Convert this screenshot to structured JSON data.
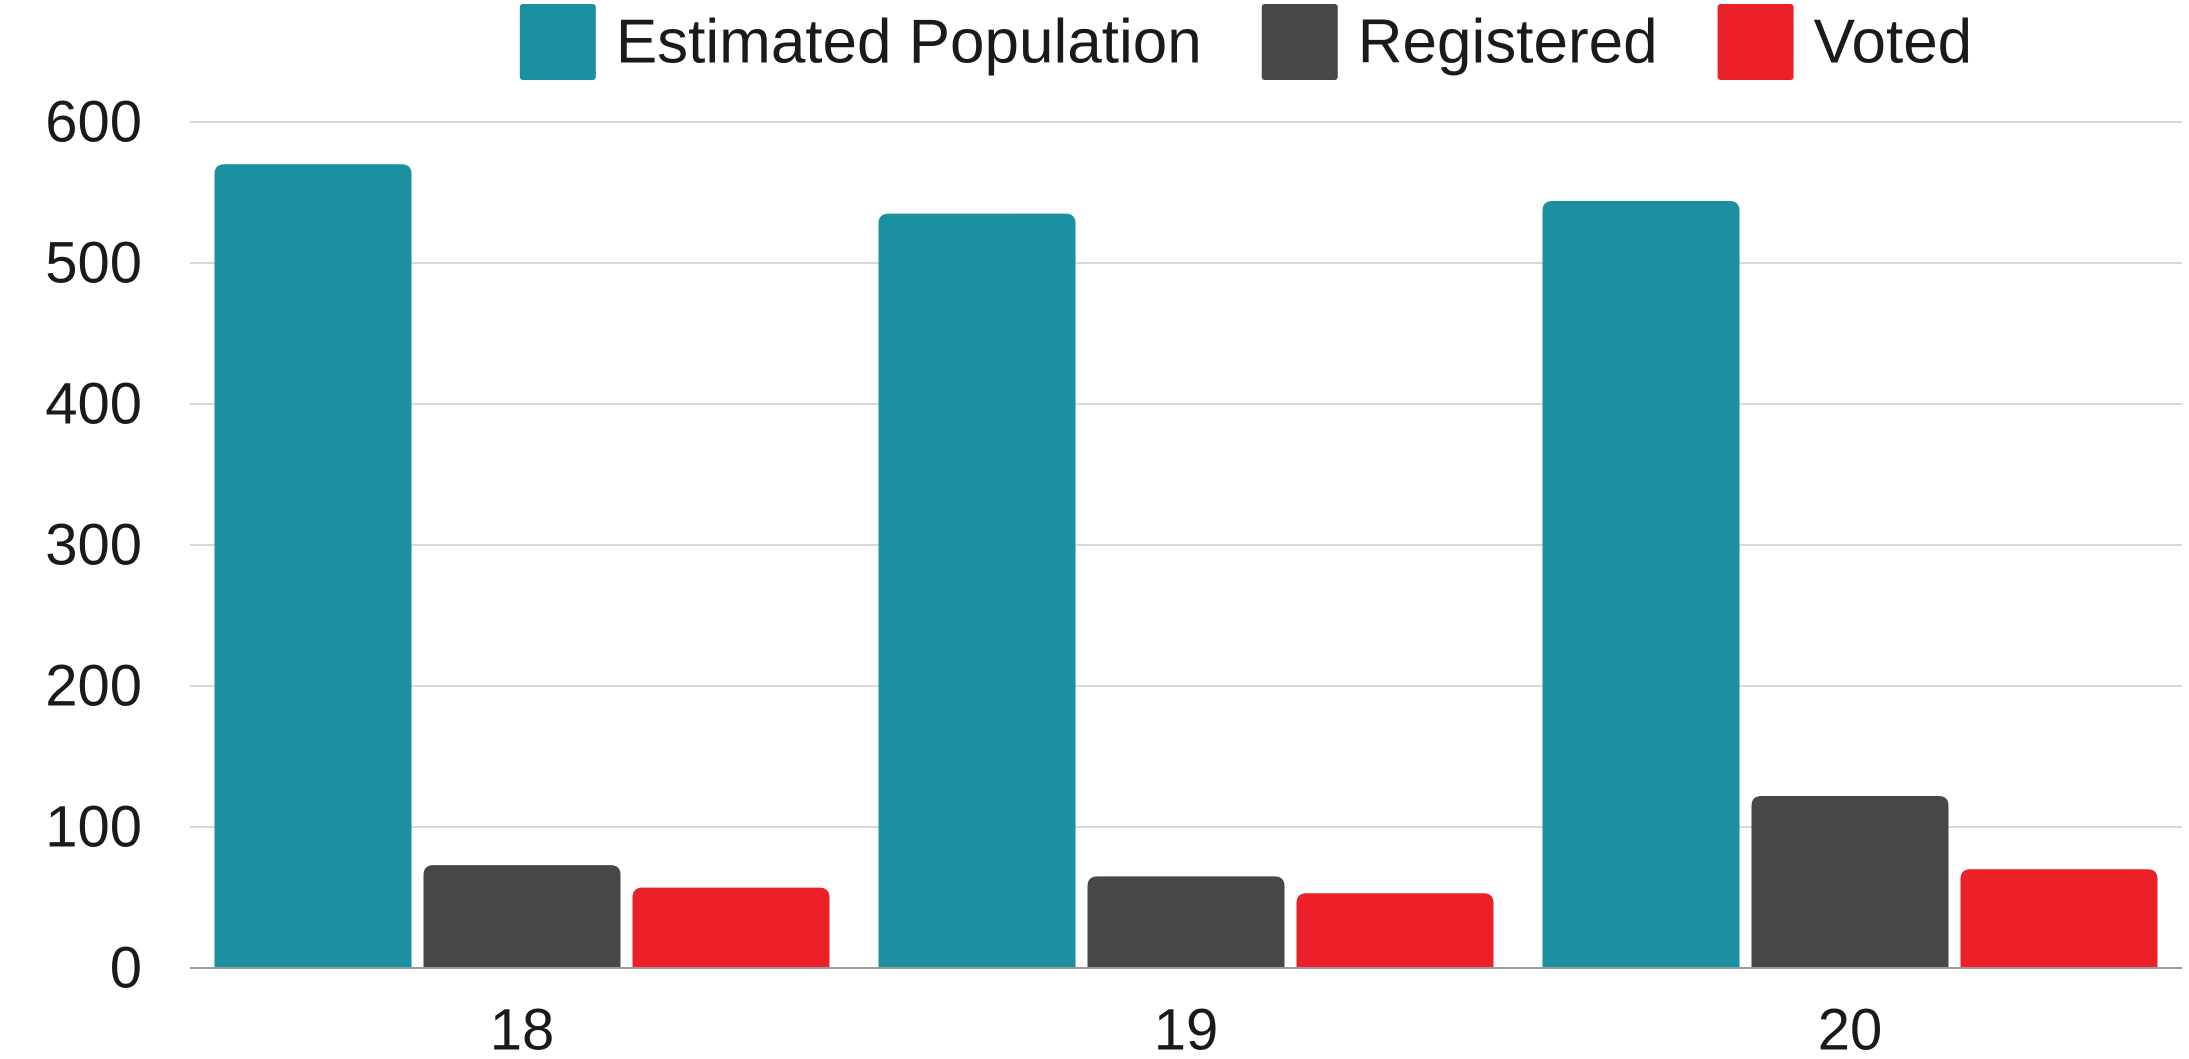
{
  "chart_data": {
    "type": "bar",
    "title": "",
    "xlabel": "",
    "ylabel": "",
    "categories": [
      "18",
      "19",
      "20"
    ],
    "series": [
      {
        "name": "Estimated Population",
        "color": "#1A90A0",
        "values": [
          570,
          535,
          544
        ]
      },
      {
        "name": "Registered",
        "color": "#474747",
        "values": [
          73,
          65,
          122
        ]
      },
      {
        "name": "Voted",
        "color": "#EC2028",
        "values": [
          57,
          53,
          70
        ]
      }
    ],
    "ylim": [
      0,
      600
    ],
    "yticks": [
      "0",
      "100",
      "200",
      "300",
      "400",
      "500",
      "600"
    ],
    "grid": true,
    "legend_position": "top"
  }
}
